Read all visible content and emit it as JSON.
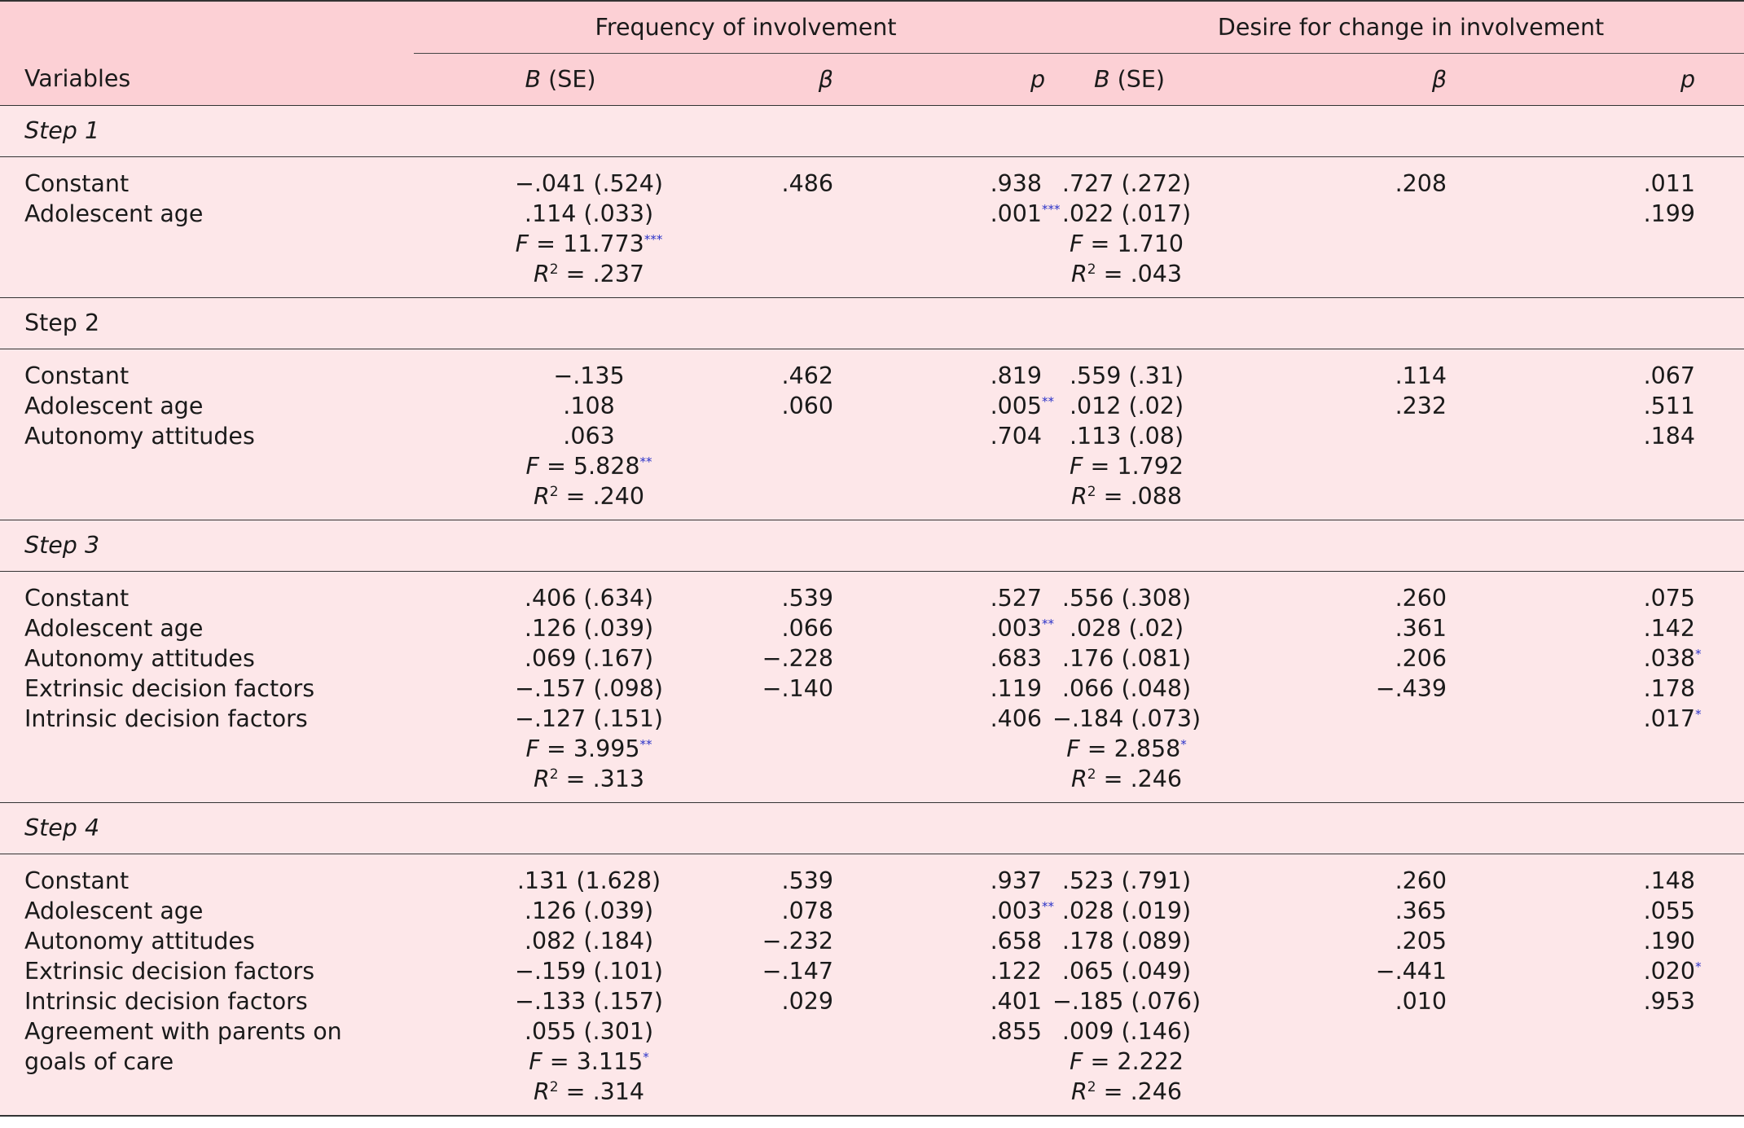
{
  "header": {
    "group_frequency": "Frequency of involvement",
    "group_desire": "Desire for change in involvement",
    "variables": "Variables",
    "b_se": "B (SE)",
    "b_letter": "B",
    "se_text": " (SE)",
    "beta": "β",
    "p": "p"
  },
  "steps": [
    {
      "title": "Step 1",
      "title_italic": true,
      "variables": [
        "Constant",
        "Adolescent age"
      ],
      "freq_b": [
        ".−.041 (.524)",
        ".114 (.033)"
      ],
      "freq_beta": [
        ".486",
        ""
      ],
      "freq_p": [
        ".938",
        ".001"
      ],
      "freq_p_sig": [
        "",
        "***"
      ],
      "freq_F": "11.773",
      "freq_F_sig": "***",
      "freq_R2": ".237",
      "des_b": [
        ".727 (.272)",
        ".022 (.017)"
      ],
      "des_beta": [
        ".208",
        ""
      ],
      "des_p": [
        ".011",
        ".199"
      ],
      "des_p_sig": [
        "",
        ""
      ],
      "des_F": "1.710",
      "des_F_sig": "",
      "des_R2": ".043"
    },
    {
      "title": "Step 2",
      "title_italic": false,
      "variables": [
        "Constant",
        "Adolescent age",
        "Autonomy attitudes"
      ],
      "freq_b": [
        "−.135",
        ".108",
        ".063"
      ],
      "freq_beta": [
        ".462",
        ".060",
        ""
      ],
      "freq_p": [
        ".819",
        ".005",
        ".704"
      ],
      "freq_p_sig": [
        "",
        "**",
        ""
      ],
      "freq_F": "5.828",
      "freq_F_sig": "**",
      "freq_R2": ".240",
      "des_b": [
        ".559 (.31)",
        ".012 (.02)",
        ".113 (.08)"
      ],
      "des_beta": [
        ".114",
        ".232",
        ""
      ],
      "des_p": [
        ".067",
        ".511",
        ".184"
      ],
      "des_p_sig": [
        "",
        "",
        ""
      ],
      "des_F": "1.792",
      "des_F_sig": "",
      "des_R2": ".088"
    },
    {
      "title": "Step 3",
      "title_italic": true,
      "variables": [
        "Constant",
        "Adolescent age",
        "Autonomy attitudes",
        "Extrinsic decision factors",
        "Intrinsic decision factors"
      ],
      "freq_b": [
        ".406 (.634)",
        ".126 (.039)",
        ".069 (.167)",
        "−.157 (.098)",
        "−.127 (.151)"
      ],
      "freq_beta": [
        ".539",
        ".066",
        "−.228",
        "−.140",
        ""
      ],
      "freq_p": [
        ".527",
        ".003",
        ".683",
        ".119",
        ".406"
      ],
      "freq_p_sig": [
        "",
        "**",
        "",
        "",
        ""
      ],
      "freq_F": "3.995",
      "freq_F_sig": "**",
      "freq_R2": ".313",
      "des_b": [
        ".556 (.308)",
        ".028 (.02)",
        ".176 (.081)",
        ".066 (.048)",
        "−.184 (.073)"
      ],
      "des_beta": [
        ".260",
        ".361",
        ".206",
        "−.439",
        ""
      ],
      "des_p": [
        ".075",
        ".142",
        ".038",
        ".178",
        ".017"
      ],
      "des_p_sig": [
        "",
        "",
        "*",
        "",
        "*"
      ],
      "des_F": "2.858",
      "des_F_sig": "*",
      "des_R2": ".246"
    },
    {
      "title": "Step 4",
      "title_italic": true,
      "variables": [
        "Constant",
        "Adolescent age",
        "Autonomy attitudes",
        "Extrinsic decision factors",
        "Intrinsic decision factors",
        "Agreement with parents on",
        "goals of care"
      ],
      "freq_b": [
        ".131 (1.628)",
        ".126 (.039)",
        ".082 (.184)",
        "−.159 (.101)",
        "−.133 (.157)",
        ".055 (.301)"
      ],
      "freq_beta": [
        ".539",
        ".078",
        "−.232",
        "−.147",
        ".029",
        ""
      ],
      "freq_p": [
        ".937",
        ".003",
        ".658",
        ".122",
        ".401",
        ".855"
      ],
      "freq_p_sig": [
        "",
        "**",
        "",
        "",
        "",
        ""
      ],
      "freq_F": "3.115",
      "freq_F_sig": "*",
      "freq_R2": ".314",
      "des_b": [
        ".523 (.791)",
        ".028 (.019)",
        ".178 (.089)",
        ".065 (.049)",
        "−.185 (.076)",
        ".009 (.146)"
      ],
      "des_beta": [
        ".260",
        ".365",
        ".205",
        "−.441",
        ".010",
        ""
      ],
      "des_p": [
        ".148",
        ".055",
        ".190",
        ".020",
        ".953",
        ""
      ],
      "des_p_sig": [
        "",
        "",
        "",
        "*",
        "",
        ""
      ],
      "des_F": "2.222",
      "des_F_sig": "",
      "des_R2": ".246"
    }
  ],
  "stat_labels": {
    "F": "F",
    "R": "R",
    "R_sup": "2",
    "eq": " = "
  }
}
